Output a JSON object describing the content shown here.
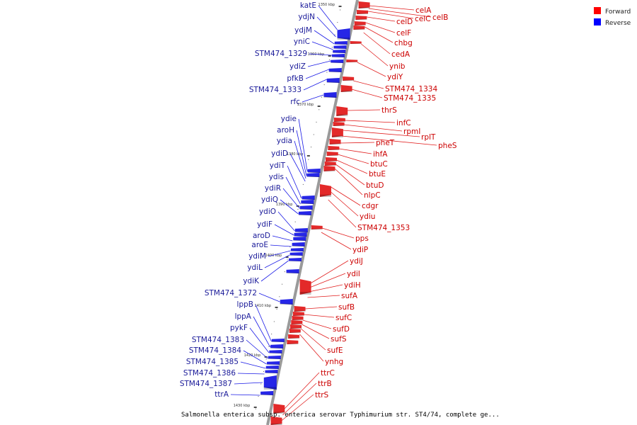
{
  "title": "Salmonella enterica subsp. enterica serovar Typhimurium str. ST4/74, complete ge...",
  "legend": [
    {
      "label": "Forward",
      "color": "#ff0000"
    },
    {
      "label": "Reverse",
      "color": "#0000ff"
    }
  ],
  "colors": {
    "forward": "#e11d1d",
    "reverse": "#1a1ae6",
    "backbone": "#9a9a9a",
    "forward_text": "#cc0000",
    "reverse_text": "#1a1a99"
  },
  "ticks": [
    "1350 kbp",
    "1360 kbp",
    "1370 kbp",
    "1380 kbp",
    "1390 kbp",
    "1400 kbp",
    "1410 kbp",
    "1420 kbp",
    "1430 kbp"
  ],
  "reverse_genes": [
    "katE",
    "ydjN",
    "ydjM",
    "yniC",
    "STM474_1329",
    "ydiZ",
    "pfkB",
    "STM474_1333",
    "rfc",
    "ydie",
    "aroH",
    "ydia",
    "ydiD",
    "ydiT",
    "ydis",
    "ydiR",
    "ydiQ",
    "ydiO",
    "ydiF",
    "aroD",
    "aroE",
    "ydiM",
    "ydiL",
    "ydiK",
    "STM474_1372",
    "lppB",
    "lppA",
    "pykF",
    "STM474_1383",
    "STM474_1384",
    "STM474_1385",
    "STM474_1386",
    "STM474_1387",
    "ttrA"
  ],
  "forward_genes": [
    "celA",
    "celB",
    "celC",
    "celD",
    "celF",
    "chbg",
    "cedA",
    "ynib",
    "ydiY",
    "STM474_1334",
    "STM474_1335",
    "thrS",
    "infC",
    "rpmI",
    "rplT",
    "pheS",
    "pheT",
    "ihfA",
    "btuC",
    "btuE",
    "btuD",
    "nlpC",
    "cdgr",
    "ydiu",
    "STM474_1353",
    "pps",
    "ydiP",
    "ydiJ",
    "ydiI",
    "ydiH",
    "sufA",
    "sufB",
    "sufC",
    "sufD",
    "sufS",
    "sufE",
    "ynhg",
    "ttrC",
    "ttrB",
    "ttrS"
  ]
}
